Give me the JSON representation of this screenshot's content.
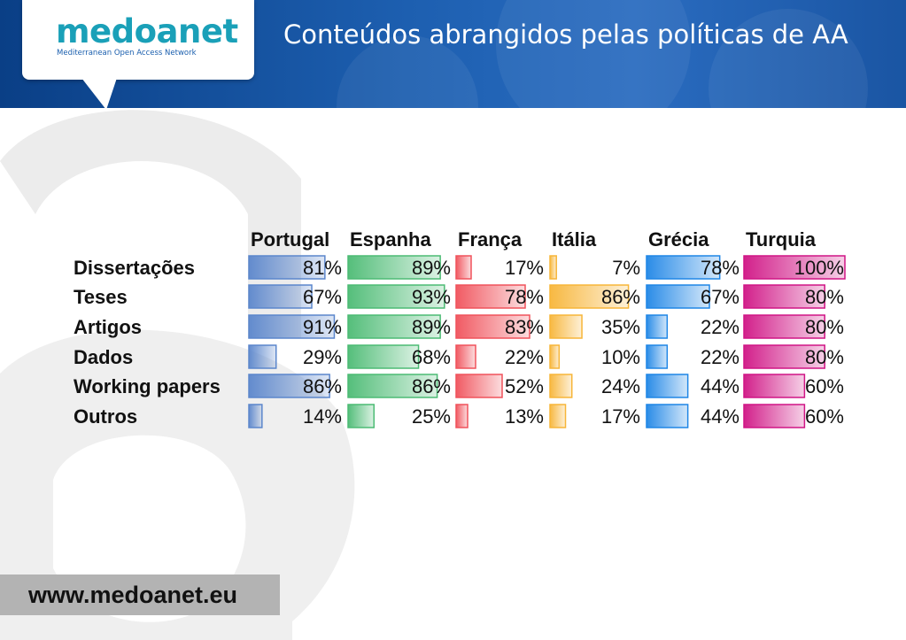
{
  "header": {
    "logo_word": "medoanet",
    "logo_tagline": "Mediterranean Open Access Network",
    "title": "Conteúdos abrangidos pelas políticas de AA"
  },
  "footer": {
    "url": "www.medoanet.eu"
  },
  "colors": {
    "header_blue": "#1a55a3",
    "logo_teal": "#1aa0b8",
    "footer_gray": "#b3b3b3"
  },
  "chart_data": {
    "type": "table",
    "title": "",
    "columns": [
      "Portugal",
      "Espanha",
      "França",
      "Itália",
      "Grécia",
      "Turquia"
    ],
    "rows": [
      "Dissertações",
      "Teses",
      "Artigos",
      "Dados",
      "Working papers",
      "Outros"
    ],
    "unit": "%",
    "series": [
      {
        "name": "Portugal",
        "color": "#5b86cc",
        "values": [
          81,
          67,
          91,
          29,
          86,
          14
        ]
      },
      {
        "name": "Espanha",
        "color": "#4cbb74",
        "values": [
          89,
          93,
          89,
          68,
          86,
          25
        ]
      },
      {
        "name": "França",
        "color": "#f0525b",
        "values": [
          17,
          78,
          83,
          22,
          52,
          13
        ]
      },
      {
        "name": "Itália",
        "color": "#f7b538",
        "values": [
          7,
          86,
          35,
          10,
          24,
          17
        ]
      },
      {
        "name": "Grécia",
        "color": "#1f86e6",
        "values": [
          78,
          67,
          22,
          22,
          44,
          44
        ]
      },
      {
        "name": "Turquia",
        "color": "#d01585",
        "values": [
          100,
          80,
          80,
          80,
          60,
          60
        ]
      }
    ]
  }
}
